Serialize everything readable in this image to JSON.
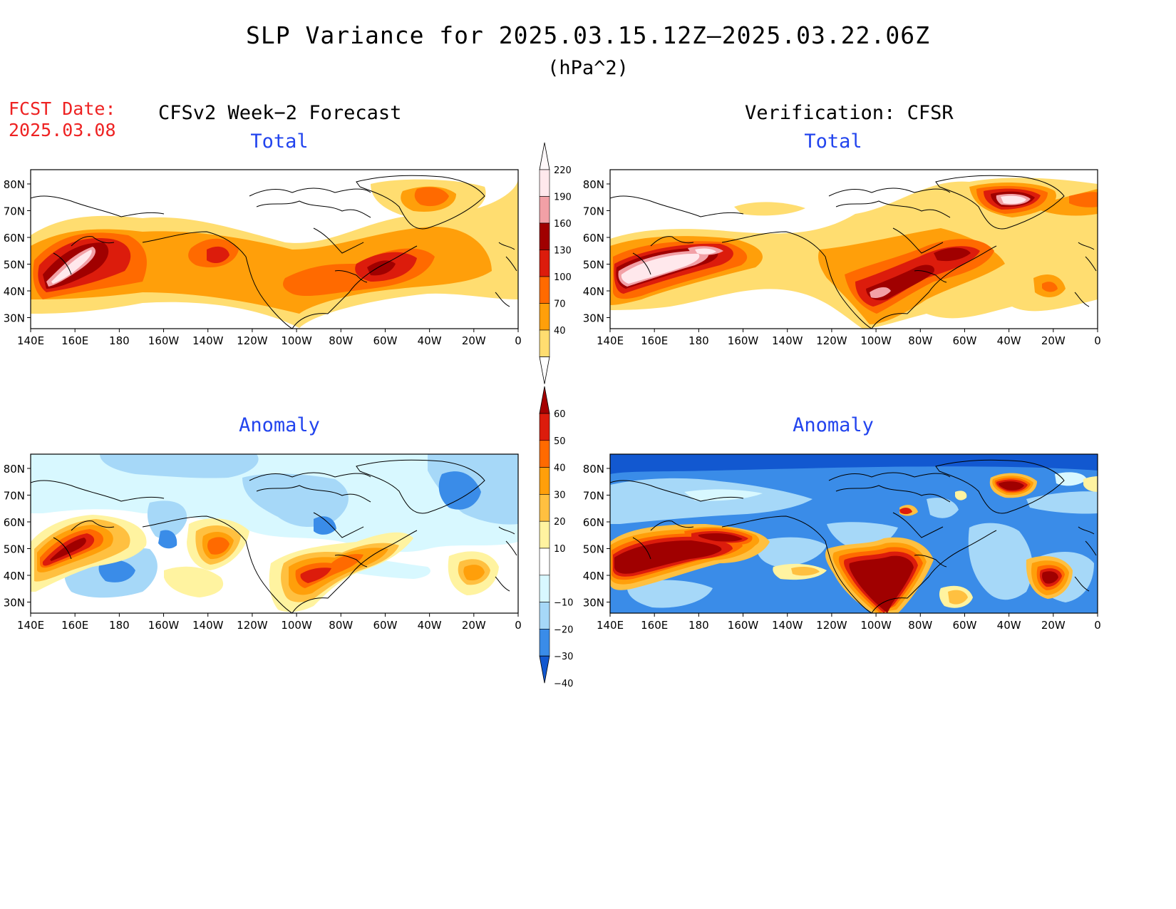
{
  "title": "SLP Variance for 2025.03.15.12Z–2025.03.22.06Z",
  "units": "(hPa^2)",
  "fcst": {
    "line1": "FCST Date:",
    "line2": "2025.03.08"
  },
  "columns": {
    "left": "CFSv2 Week−2 Forecast",
    "right": "Verification: CFSR"
  },
  "panels": {
    "top_left_title": "Total",
    "top_right_title": "Total",
    "bottom_left_title": "Anomaly",
    "bottom_right_title": "Anomaly"
  },
  "lat_ticks": [
    "80N",
    "70N",
    "60N",
    "50N",
    "40N",
    "30N"
  ],
  "lon_ticks": [
    "140E",
    "160E",
    "180",
    "160W",
    "140W",
    "120W",
    "100W",
    "80W",
    "60W",
    "40W",
    "20W",
    "0"
  ],
  "colorbar_total": {
    "labels": [
      "220",
      "190",
      "160",
      "130",
      "100",
      "70",
      "40"
    ],
    "colors": [
      "#ffe8ec",
      "#f2a0a6",
      "#a00000",
      "#dc1c0c",
      "#ff6a00",
      "#ff9f0a",
      "#ffdd70"
    ]
  },
  "colorbar_anom": {
    "labels": [
      "60",
      "50",
      "40",
      "30",
      "20",
      "10",
      "−10",
      "−20",
      "−30",
      "−40"
    ],
    "colors": [
      "#a50000",
      "#dc1c0c",
      "#ff6a00",
      "#ff9f0a",
      "#ffc040",
      "#fff3a0",
      "#ffffff",
      "#d8f8ff",
      "#a6d8f8",
      "#3a8ce8",
      "#1258d0"
    ]
  }
}
